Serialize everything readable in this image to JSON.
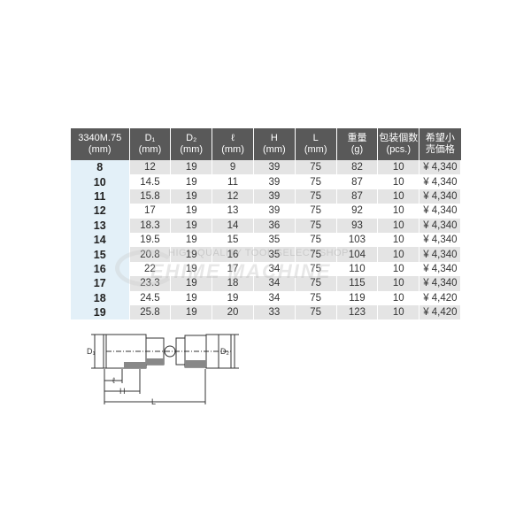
{
  "table": {
    "headers": [
      [
        "3340M.75",
        "(mm)"
      ],
      [
        "D₁",
        "(mm)"
      ],
      [
        "D₂",
        "(mm)"
      ],
      [
        "ℓ",
        "(mm)"
      ],
      [
        "H",
        "(mm)"
      ],
      [
        "L",
        "(mm)"
      ],
      [
        "重量",
        "(g)"
      ],
      [
        "包装個数",
        "(pcs.)"
      ],
      [
        "希望小",
        "売価格"
      ]
    ],
    "rows": [
      [
        "8",
        "12",
        "19",
        "9",
        "39",
        "75",
        "82",
        "10",
        "¥ 4,340"
      ],
      [
        "10",
        "14.5",
        "19",
        "11",
        "39",
        "75",
        "87",
        "10",
        "¥ 4,340"
      ],
      [
        "11",
        "15.8",
        "19",
        "12",
        "39",
        "75",
        "87",
        "10",
        "¥ 4,340"
      ],
      [
        "12",
        "17",
        "19",
        "13",
        "39",
        "75",
        "92",
        "10",
        "¥ 4,340"
      ],
      [
        "13",
        "18.3",
        "19",
        "14",
        "36",
        "75",
        "93",
        "10",
        "¥ 4,340"
      ],
      [
        "14",
        "19.5",
        "19",
        "15",
        "35",
        "75",
        "103",
        "10",
        "¥ 4,340"
      ],
      [
        "15",
        "20.8",
        "19",
        "16",
        "35",
        "75",
        "104",
        "10",
        "¥ 4,340"
      ],
      [
        "16",
        "22",
        "19",
        "17",
        "34",
        "75",
        "110",
        "10",
        "¥ 4,340"
      ],
      [
        "17",
        "23.3",
        "19",
        "18",
        "34",
        "75",
        "115",
        "10",
        "¥ 4,340"
      ],
      [
        "18",
        "24.5",
        "19",
        "19",
        "34",
        "75",
        "119",
        "10",
        "¥ 4,420"
      ],
      [
        "19",
        "25.8",
        "19",
        "20",
        "33",
        "75",
        "123",
        "10",
        "¥ 4,420"
      ]
    ]
  },
  "watermark": {
    "line1": "HIGH QUALITY TOOL SELECT SHOP",
    "line2": "EHIME MACHINE"
  },
  "diagram": {
    "d1": "D₁",
    "d2": "D₂",
    "l_small": "ℓ",
    "h": "H",
    "l": "L"
  }
}
